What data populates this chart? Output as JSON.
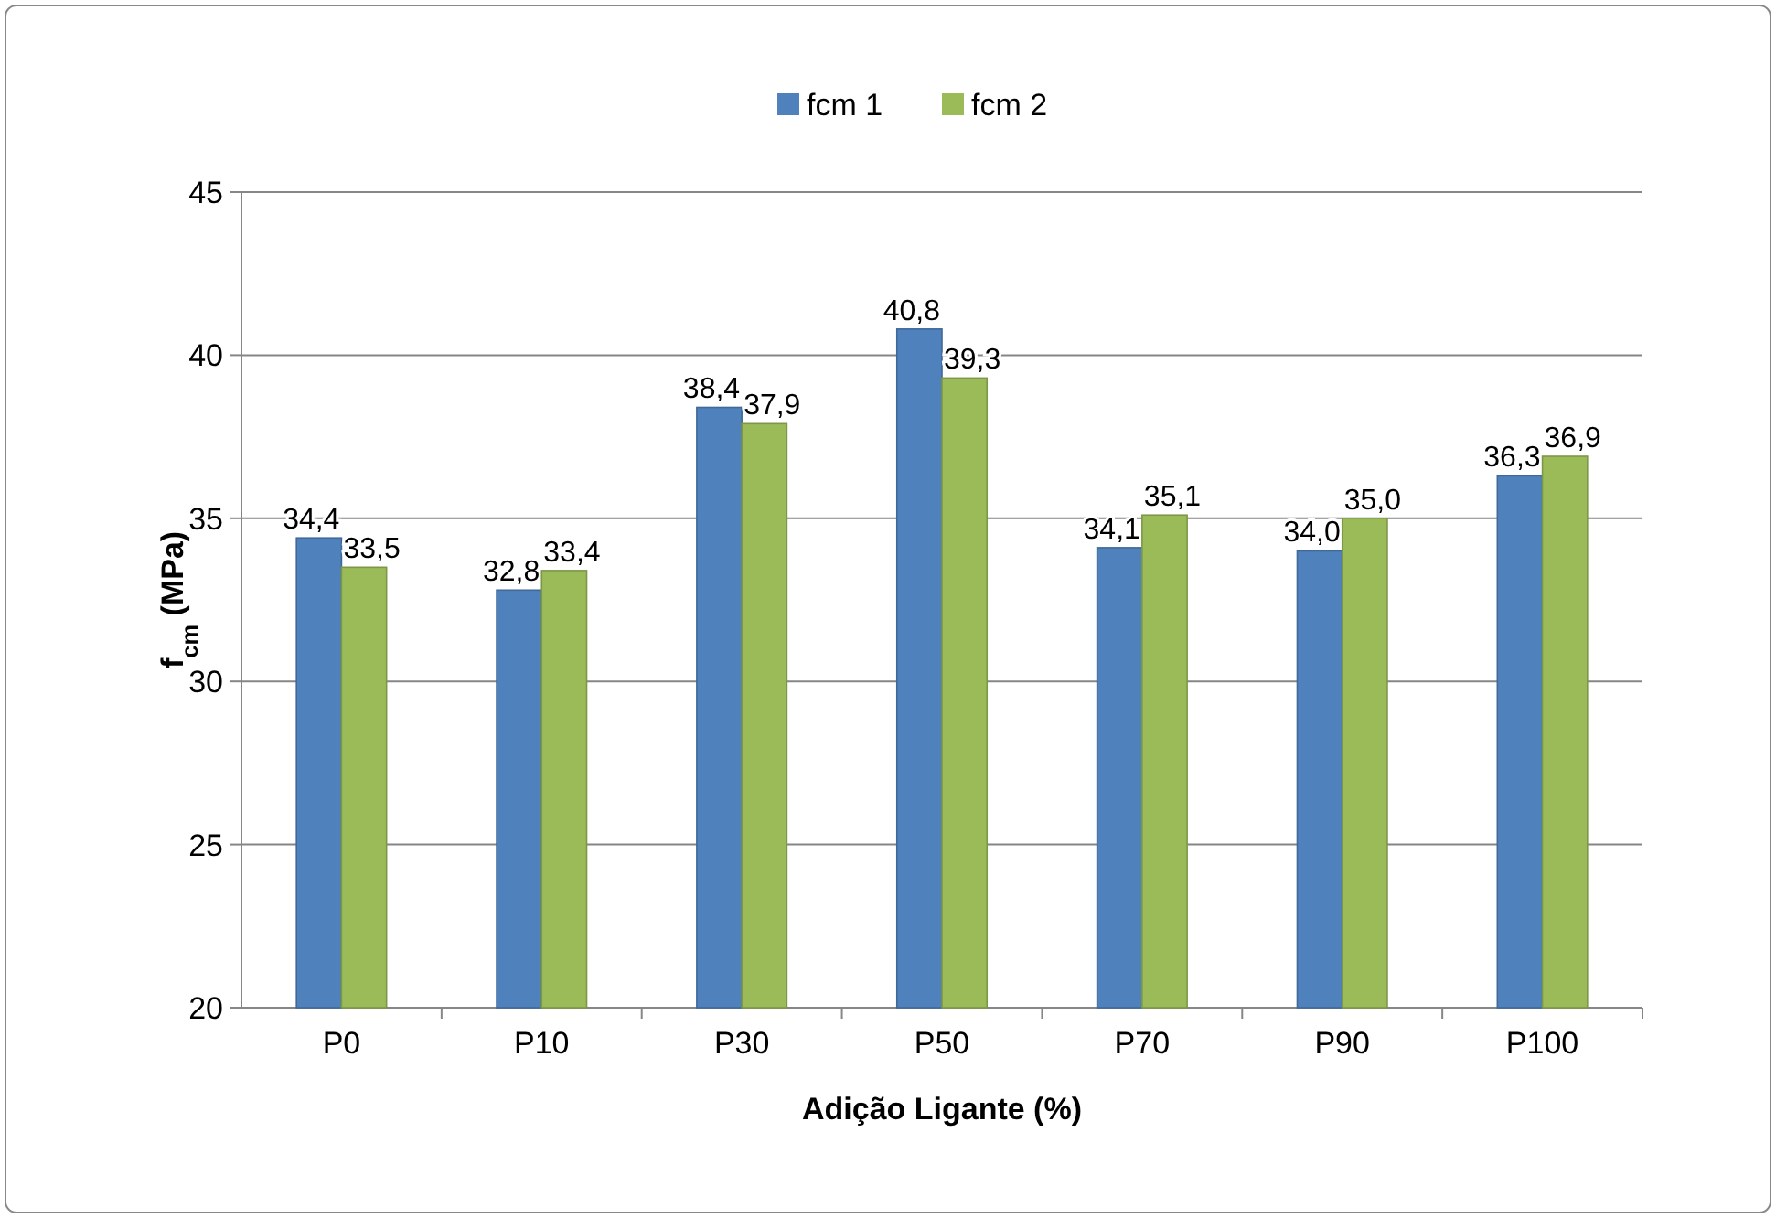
{
  "chart_data": {
    "type": "bar",
    "xlabel": "Adição Ligante (%)",
    "ylabel": "f$_{cm}$ (MPa)",
    "categories": [
      "P0",
      "P10",
      "P30",
      "P50",
      "P70",
      "P90",
      "P100"
    ],
    "series": [
      {
        "name": "fcm 1",
        "color": "#4f81bd",
        "values": [
          34.4,
          32.8,
          38.4,
          40.8,
          34.1,
          34.0,
          36.3
        ],
        "value_labels": [
          "34,4",
          "32,8",
          "38,4",
          "40,8",
          "34,1",
          "34,0",
          "36,3"
        ]
      },
      {
        "name": "fcm 2",
        "color": "#9bbb59",
        "values": [
          33.5,
          33.4,
          37.9,
          39.3,
          35.1,
          35.0,
          36.9
        ],
        "value_labels": [
          "33,5",
          "33,4",
          "37,9",
          "39,3",
          "35,1",
          "35,0",
          "36,9"
        ]
      }
    ],
    "ylim": [
      20,
      45
    ],
    "yticks": [
      20,
      25,
      30,
      35,
      40,
      45
    ],
    "grid": "y",
    "legend": "top"
  }
}
